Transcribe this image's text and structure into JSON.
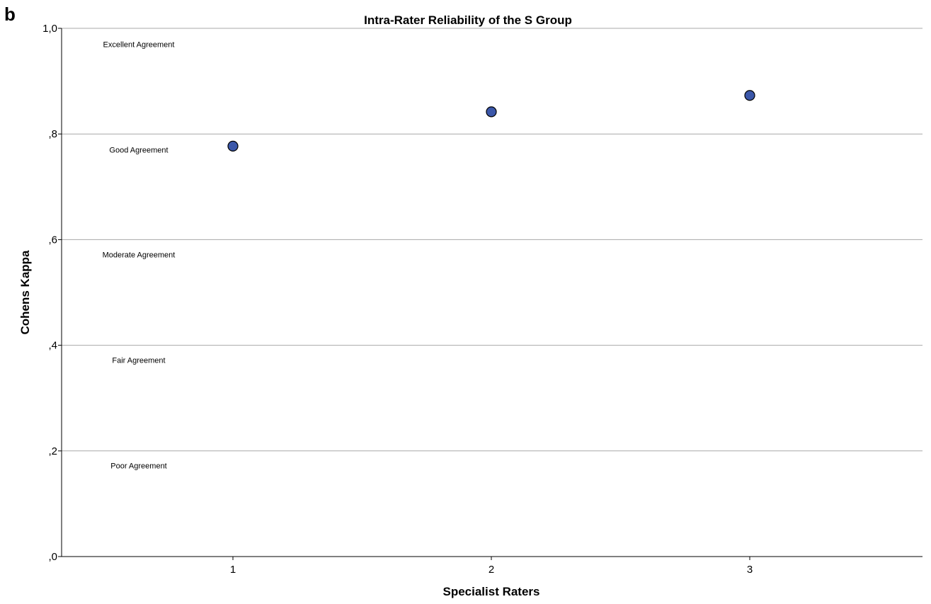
{
  "panel_label": "b",
  "chart_data": {
    "type": "scatter",
    "title": "Intra-Rater Reliability of the S Group",
    "xlabel": "Specialist Raters",
    "ylabel": "Cohens Kappa",
    "x_categories": [
      "1",
      "2",
      "3"
    ],
    "series": [
      {
        "x": [
          "1",
          "2",
          "3"
        ],
        "values": [
          0.777,
          0.842,
          0.873
        ],
        "color": "#3b57a9"
      }
    ],
    "ylim": [
      0,
      1.0
    ],
    "y_ticks": [
      {
        "value": 0.0,
        "label": ",0"
      },
      {
        "value": 0.2,
        "label": ",2"
      },
      {
        "value": 0.4,
        "label": ",4"
      },
      {
        "value": 0.6,
        "label": ",6"
      },
      {
        "value": 0.8,
        "label": ",8"
      },
      {
        "value": 1.0,
        "label": "1,0"
      }
    ],
    "grid": true,
    "annotations": [
      {
        "text": "Excellent Agreement",
        "y": 0.97
      },
      {
        "text": "Good Agreement",
        "y": 0.77
      },
      {
        "text": "Moderate Agreement",
        "y": 0.572
      },
      {
        "text": "Fair Agreement",
        "y": 0.372
      },
      {
        "text": "Poor Agreement",
        "y": 0.172
      }
    ]
  }
}
